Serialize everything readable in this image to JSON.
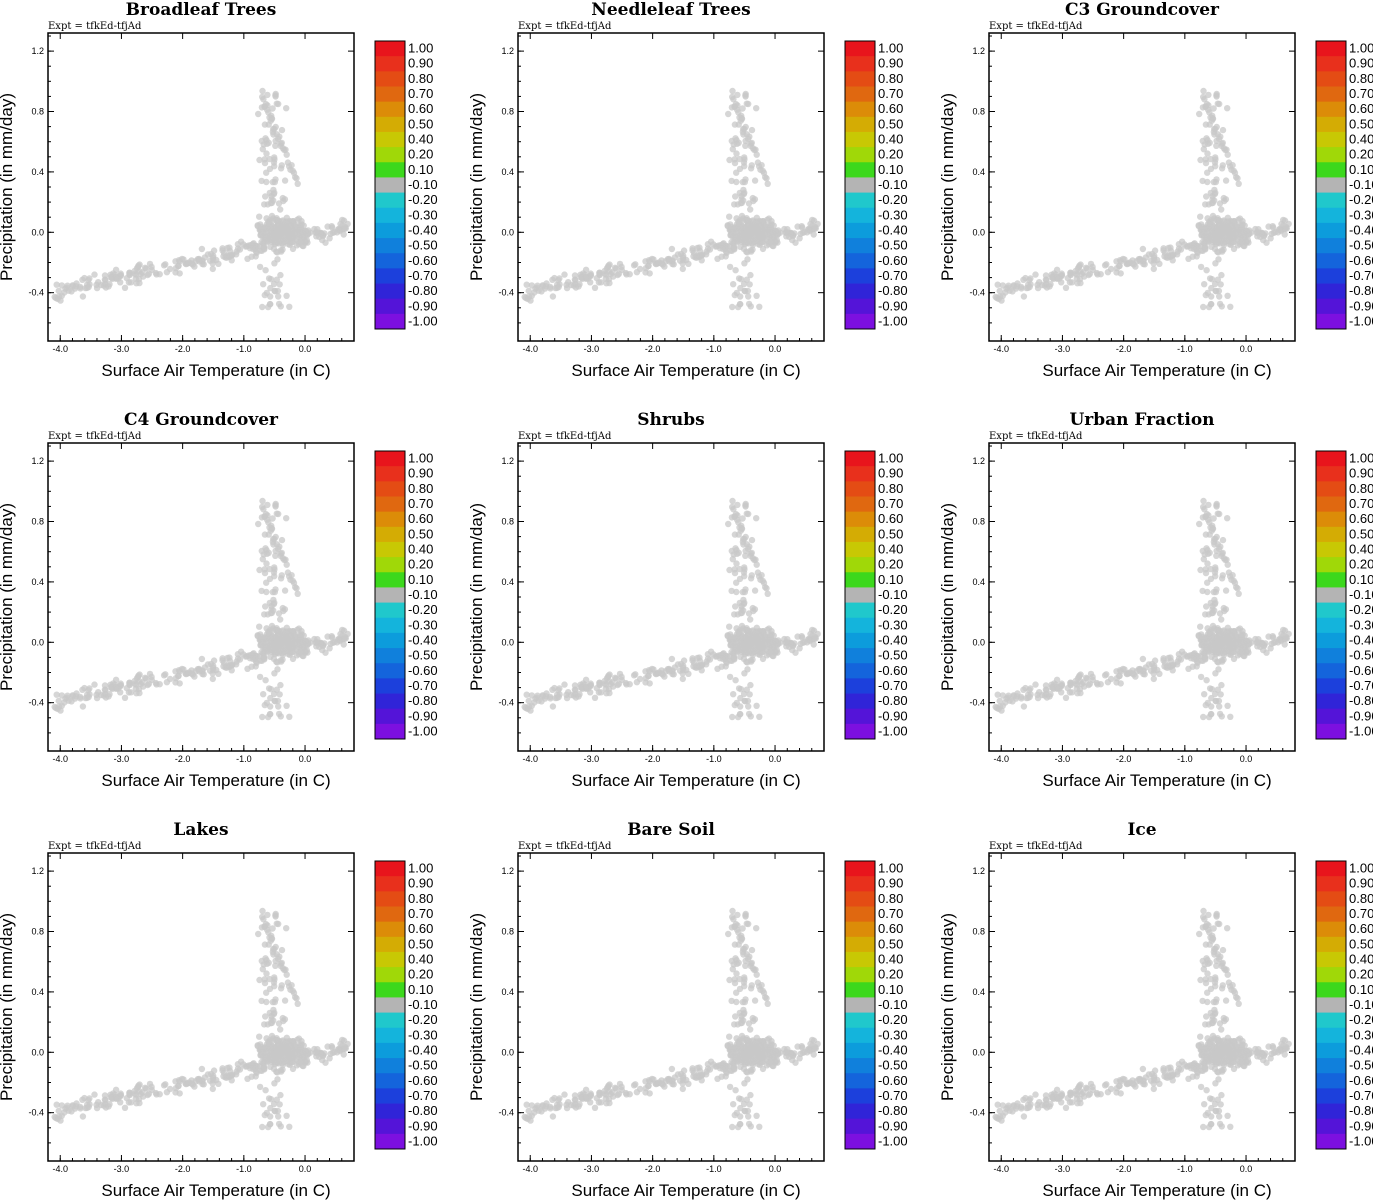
{
  "expt_label": "Expt = tfkEd-tfjAd",
  "colorbar": {
    "levels": [
      "1.00",
      "0.90",
      "0.80",
      "0.70",
      "0.60",
      "0.50",
      "0.40",
      "0.20",
      "0.10",
      "-0.10",
      "-0.20",
      "-0.30",
      "-0.40",
      "-0.50",
      "-0.60",
      "-0.70",
      "-0.80",
      "-0.90",
      "-1.00"
    ],
    "colors": [
      "#e8141c",
      "#e8301c",
      "#e44c14",
      "#e06810",
      "#dc8c08",
      "#d4ac04",
      "#c8c804",
      "#a0d808",
      "#3cd81c",
      "#b4b4b4",
      "#20c8cc",
      "#14b4dc",
      "#0c9cdc",
      "#1080dc",
      "#1464dc",
      "#1c40dc",
      "#3024d8",
      "#5414d8",
      "#7c10e0"
    ]
  },
  "chart_data": [
    {
      "type": "scatter",
      "title": "Broadleaf Trees",
      "xlabel": "Surface Air Temperature (in C)",
      "ylabel": "Precipitation (in mm/day)",
      "xlim": [
        -4.2,
        0.8
      ],
      "ylim": [
        -0.72,
        1.32
      ],
      "xticks": [
        "-4.0",
        "-3.0",
        "-2.0",
        "-1.0",
        "0.0"
      ],
      "yticks": [
        "1.2",
        "0.8",
        "0.4",
        "0.0",
        "-0.4"
      ]
    },
    {
      "type": "scatter",
      "title": "Needleleaf Trees",
      "xlabel": "Surface Air Temperature (in C)",
      "ylabel": "Precipitation (in mm/day)",
      "xlim": [
        -4.2,
        0.8
      ],
      "ylim": [
        -0.72,
        1.32
      ],
      "xticks": [
        "-4.0",
        "-3.0",
        "-2.0",
        "-1.0",
        "0.0"
      ],
      "yticks": [
        "1.2",
        "0.8",
        "0.4",
        "0.0",
        "-0.4"
      ]
    },
    {
      "type": "scatter",
      "title": "C3 Groundcover",
      "xlabel": "Surface Air Temperature (in C)",
      "ylabel": "Precipitation (in mm/day)",
      "xlim": [
        -4.2,
        0.8
      ],
      "ylim": [
        -0.72,
        1.32
      ],
      "xticks": [
        "-4.0",
        "-3.0",
        "-2.0",
        "-1.0",
        "0.0"
      ],
      "yticks": [
        "1.2",
        "0.8",
        "0.4",
        "0.0",
        "-0.4"
      ]
    },
    {
      "type": "scatter",
      "title": "C4 Groundcover",
      "xlabel": "Surface Air Temperature (in C)",
      "ylabel": "Precipitation (in mm/day)",
      "xlim": [
        -4.2,
        0.8
      ],
      "ylim": [
        -0.72,
        1.32
      ],
      "xticks": [
        "-4.0",
        "-3.0",
        "-2.0",
        "-1.0",
        "0.0"
      ],
      "yticks": [
        "1.2",
        "0.8",
        "0.4",
        "0.0",
        "-0.4"
      ]
    },
    {
      "type": "scatter",
      "title": "Shrubs",
      "xlabel": "Surface Air Temperature (in C)",
      "ylabel": "Precipitation (in mm/day)",
      "xlim": [
        -4.2,
        0.8
      ],
      "ylim": [
        -0.72,
        1.32
      ],
      "xticks": [
        "-4.0",
        "-3.0",
        "-2.0",
        "-1.0",
        "0.0"
      ],
      "yticks": [
        "1.2",
        "0.8",
        "0.4",
        "0.0",
        "-0.4"
      ]
    },
    {
      "type": "scatter",
      "title": "Urban Fraction",
      "xlabel": "Surface Air Temperature (in C)",
      "ylabel": "Precipitation (in mm/day)",
      "xlim": [
        -4.2,
        0.8
      ],
      "ylim": [
        -0.72,
        1.32
      ],
      "xticks": [
        "-4.0",
        "-3.0",
        "-2.0",
        "-1.0",
        "0.0"
      ],
      "yticks": [
        "1.2",
        "0.8",
        "0.4",
        "0.0",
        "-0.4"
      ]
    },
    {
      "type": "scatter",
      "title": "Lakes",
      "xlabel": "Surface Air Temperature (in C)",
      "ylabel": "Precipitation (in mm/day)",
      "xlim": [
        -4.2,
        0.8
      ],
      "ylim": [
        -0.72,
        1.32
      ],
      "xticks": [
        "-4.0",
        "-3.0",
        "-2.0",
        "-1.0",
        "0.0"
      ],
      "yticks": [
        "1.2",
        "0.8",
        "0.4",
        "0.0",
        "-0.4"
      ]
    },
    {
      "type": "scatter",
      "title": "Bare Soil",
      "xlabel": "Surface Air Temperature (in C)",
      "ylabel": "Precipitation (in mm/day)",
      "xlim": [
        -4.2,
        0.8
      ],
      "ylim": [
        -0.72,
        1.32
      ],
      "xticks": [
        "-4.0",
        "-3.0",
        "-2.0",
        "-1.0",
        "0.0"
      ],
      "yticks": [
        "1.2",
        "0.8",
        "0.4",
        "0.0",
        "-0.4"
      ]
    },
    {
      "type": "scatter",
      "title": "Ice",
      "xlabel": "Surface Air Temperature (in C)",
      "ylabel": "Precipitation (in mm/day)",
      "xlim": [
        -4.2,
        0.8
      ],
      "ylim": [
        -0.72,
        1.32
      ],
      "xticks": [
        "-4.0",
        "-3.0",
        "-2.0",
        "-1.0",
        "0.0"
      ],
      "yticks": [
        "1.2",
        "0.8",
        "0.4",
        "0.0",
        "-0.4"
      ]
    }
  ]
}
